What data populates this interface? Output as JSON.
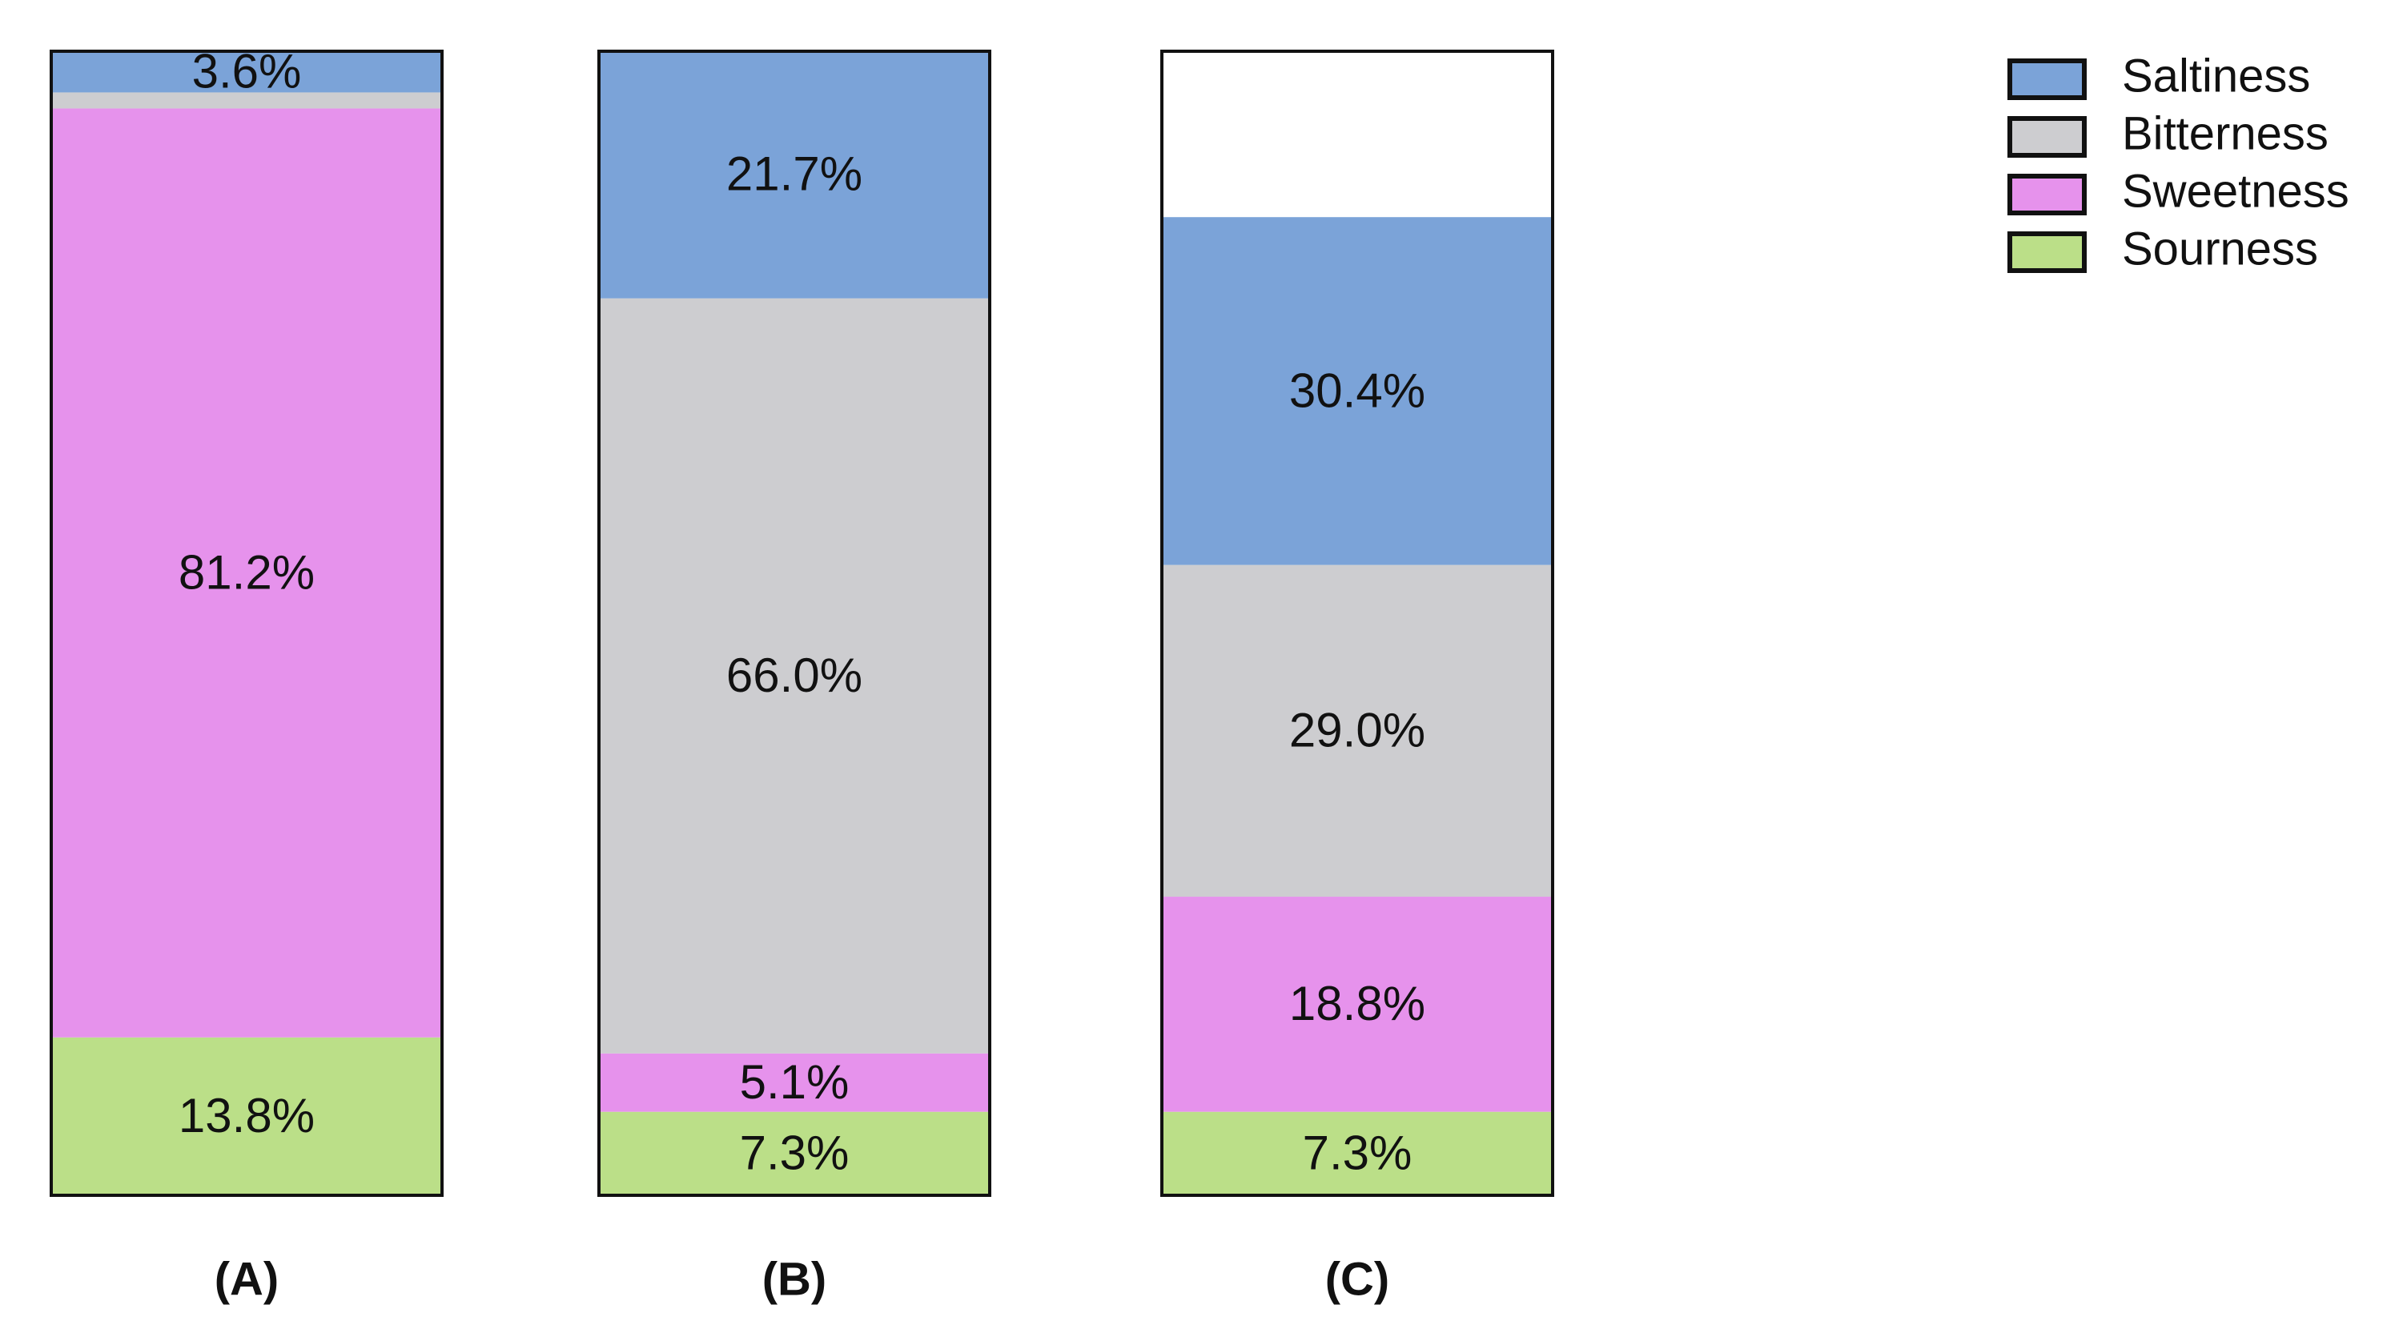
{
  "chart_data": {
    "type": "stacked-bar",
    "categories": [
      "(A)",
      "(B)",
      "(C)"
    ],
    "ylim": [
      0,
      100
    ],
    "series": [
      {
        "name": "Saltiness",
        "color": "#7ba3d8",
        "values": [
          3.6,
          21.7,
          30.4
        ],
        "value_labels": [
          "3.6%",
          "21.7%",
          "30.4%"
        ]
      },
      {
        "name": "Bitterness",
        "color": "#cdcdd0",
        "values": [
          1.4,
          66.0,
          29.0
        ],
        "value_labels": [
          null,
          "66.0%",
          "29.0%"
        ]
      },
      {
        "name": "Sweetness",
        "color": "#e692ec",
        "values": [
          81.2,
          5.1,
          18.8
        ],
        "value_labels": [
          "81.2%",
          "5.1%",
          "18.8%"
        ]
      },
      {
        "name": "Sourness",
        "color": "#bbdf88",
        "values": [
          13.8,
          7.3,
          7.3
        ],
        "value_labels": [
          "13.8%",
          "7.3%",
          "7.3%"
        ]
      }
    ]
  }
}
